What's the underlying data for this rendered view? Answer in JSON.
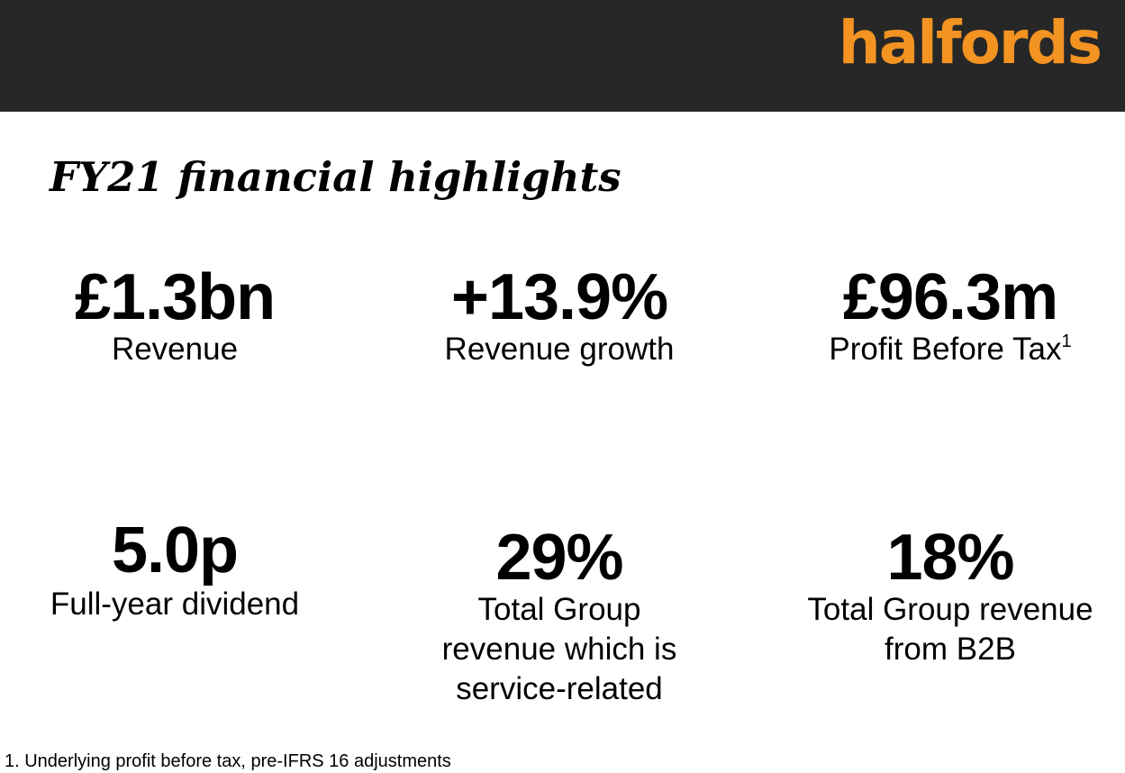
{
  "header": {
    "logo_text": "halfords",
    "logo_color": "#f39322",
    "bar_color": "#272727"
  },
  "title": "FY21 financial highlights",
  "metrics": [
    {
      "value": "£1.3bn",
      "label": "Revenue"
    },
    {
      "value": "+13.9%",
      "label": "Revenue growth"
    },
    {
      "value": "£96.3m",
      "label": "Profit Before Tax",
      "footnote_marker": "1"
    },
    {
      "value": "5.0p",
      "label": "Full-year dividend"
    },
    {
      "value": "29%",
      "label_lines": [
        "Total Group",
        "revenue which is",
        "service-related"
      ]
    },
    {
      "value": "18%",
      "label_lines": [
        "Total Group revenue",
        "from B2B"
      ]
    }
  ],
  "footnote": "1. Underlying profit before tax, pre-IFRS 16 adjustments"
}
